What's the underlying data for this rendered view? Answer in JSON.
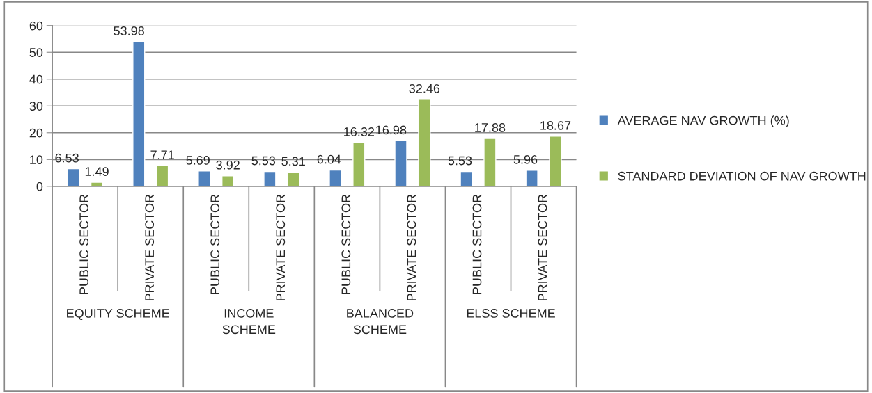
{
  "chart_data": {
    "type": "bar",
    "categories": [
      "PUBLIC SECTOR",
      "PRIVATE SECTOR",
      "PUBLIC SECTOR",
      "PRIVATE SECTOR",
      "PUBLIC SECTOR",
      "PRIVATE SECTOR",
      "PUBLIC SECTOR",
      "PRIVATE SECTOR"
    ],
    "series": [
      {
        "name": "AVERAGE NAV GROWTH (%)",
        "color": "#4f81bd",
        "values": [
          6.53,
          53.98,
          5.69,
          5.53,
          6.04,
          16.98,
          5.53,
          5.96
        ]
      },
      {
        "name": "STANDARD DEVIATION OF NAV GROWTH",
        "color": "#9bbb59",
        "values": [
          1.49,
          7.71,
          3.92,
          5.31,
          16.32,
          32.46,
          17.88,
          18.67
        ]
      }
    ],
    "annotations": [
      "EQUITY SCHEME",
      "INCOME\nSCHEME",
      "BALANCED\nSCHEME",
      "ELSS SCHEME"
    ],
    "ylim": [
      0,
      60
    ],
    "yticks": [
      0,
      10,
      20,
      30,
      40,
      50,
      60
    ],
    "grid": "y",
    "legend": "right",
    "data_labels": true
  }
}
